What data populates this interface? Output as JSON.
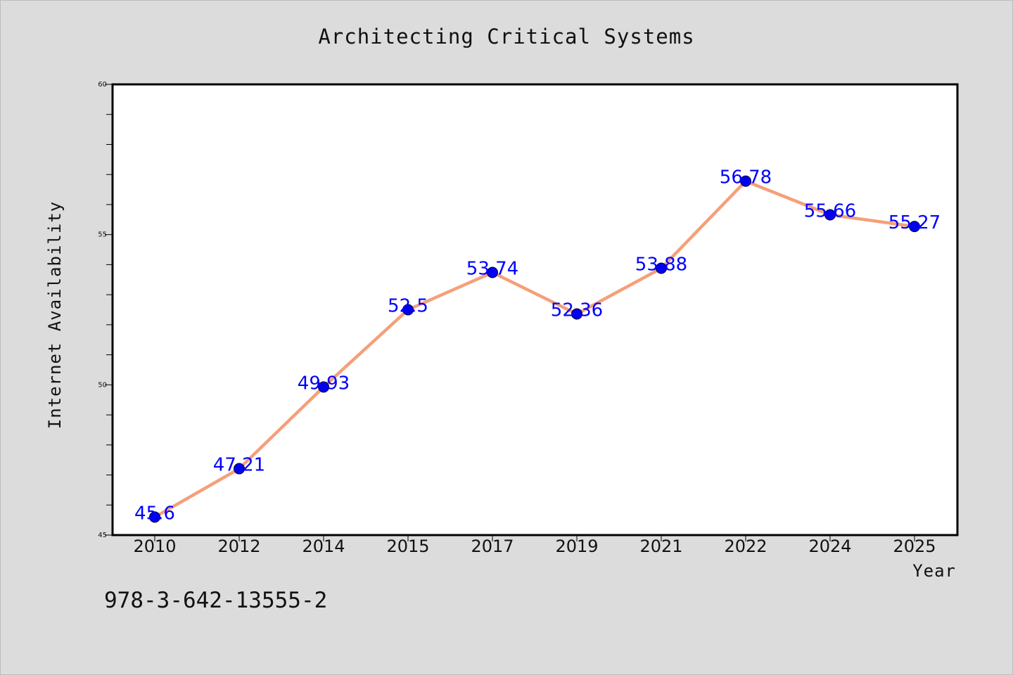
{
  "chart_data": {
    "type": "line",
    "title": "Architecting Critical Systems",
    "xlabel": "Year",
    "ylabel": "Internet Availability",
    "categories": [
      "2010",
      "2012",
      "2014",
      "2015",
      "2017",
      "2019",
      "2021",
      "2022",
      "2024",
      "2025"
    ],
    "series": [
      {
        "values": [
          45.6,
          47.21,
          49.93,
          52.5,
          53.74,
          52.36,
          53.88,
          56.78,
          55.66,
          55.27
        ],
        "line_color": "#f4a07a",
        "marker_color": "#0000ee"
      }
    ],
    "data_labels": [
      "45.6",
      "47.21",
      "49.93",
      "52.5",
      "53.74",
      "52.36",
      "53.88",
      "56.78",
      "55.66",
      "55.27"
    ],
    "data_label_color": "#0000ff",
    "ylim": [
      45,
      60
    ],
    "y_major_ticks": [
      "45",
      "50",
      "55",
      "60"
    ],
    "y_minor_step": 1,
    "grid": false,
    "legend": "none"
  },
  "footnote": "978-3-642-13555-2"
}
